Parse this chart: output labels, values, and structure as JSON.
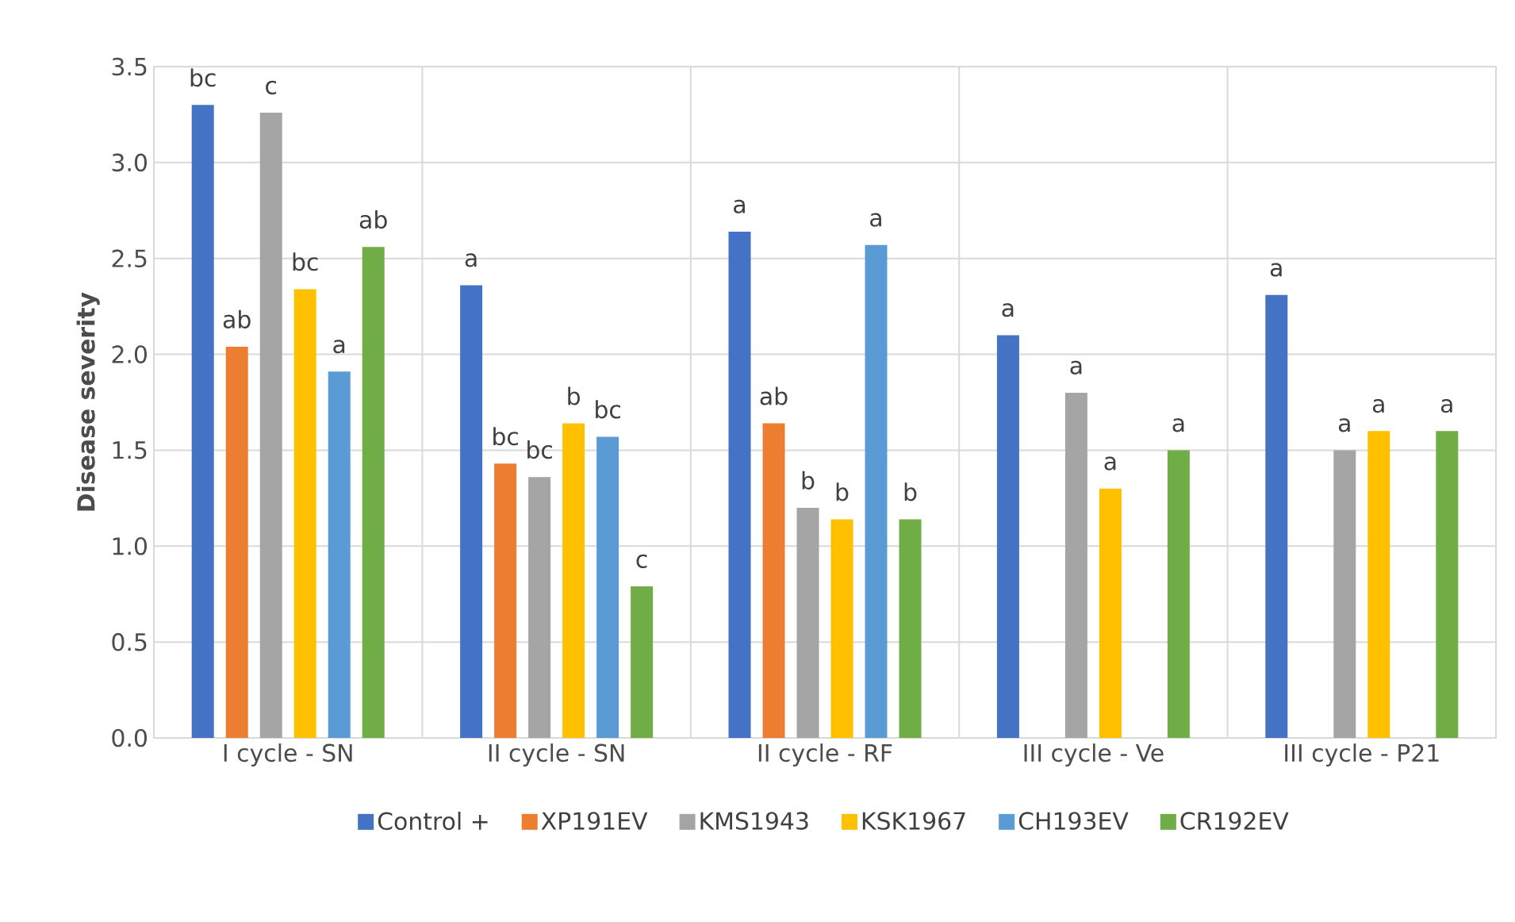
{
  "chart_data": {
    "type": "bar",
    "ylabel": "Disease severity",
    "categories": [
      "I cycle - SN",
      "II cycle - SN",
      "II cycle - RF",
      "III cycle - Ve",
      "III cycle - P21"
    ],
    "series": [
      {
        "name": "Control +",
        "color": "#4472c4",
        "values": [
          3.3,
          2.36,
          2.64,
          2.1,
          2.31
        ],
        "value_labels": [
          "bc",
          "a",
          "a",
          "a",
          "a"
        ]
      },
      {
        "name": "XP191EV",
        "color": "#ed7d31",
        "values": [
          2.04,
          1.43,
          1.64,
          null,
          null
        ],
        "value_labels": [
          "ab",
          "bc",
          "ab",
          null,
          null
        ]
      },
      {
        "name": "KMS1943",
        "color": "#a5a5a5",
        "values": [
          3.26,
          1.36,
          1.2,
          1.8,
          1.5
        ],
        "value_labels": [
          "c",
          "bc",
          "b",
          "a",
          "a"
        ]
      },
      {
        "name": "KSK1967",
        "color": "#ffc000",
        "values": [
          2.34,
          1.64,
          1.14,
          1.3,
          1.6
        ],
        "value_labels": [
          "bc",
          "b",
          "b",
          "a",
          "a"
        ]
      },
      {
        "name": "CH193EV",
        "color": "#5b9bd5",
        "values": [
          1.91,
          1.57,
          2.57,
          null,
          null
        ],
        "value_labels": [
          "a",
          "bc",
          "a",
          null,
          null
        ]
      },
      {
        "name": "CR192EV",
        "color": "#70ad47",
        "values": [
          2.56,
          0.79,
          1.14,
          1.5,
          1.6
        ],
        "value_labels": [
          "ab",
          "c",
          "b",
          "a",
          "a"
        ]
      }
    ],
    "ylim": [
      0,
      3.5
    ],
    "yticks": [
      {
        "value": 0,
        "label": "0.0"
      },
      {
        "value": 0.5,
        "label": "0.5"
      },
      {
        "value": 1,
        "label": "1.0"
      },
      {
        "value": 1.5,
        "label": "1.5"
      },
      {
        "value": 2,
        "label": "2.0"
      },
      {
        "value": 2.5,
        "label": "2.5"
      },
      {
        "value": 3,
        "label": "3.0"
      },
      {
        "value": 3.5,
        "label": "3.5"
      }
    ],
    "grid": true,
    "legend": "bottom"
  }
}
